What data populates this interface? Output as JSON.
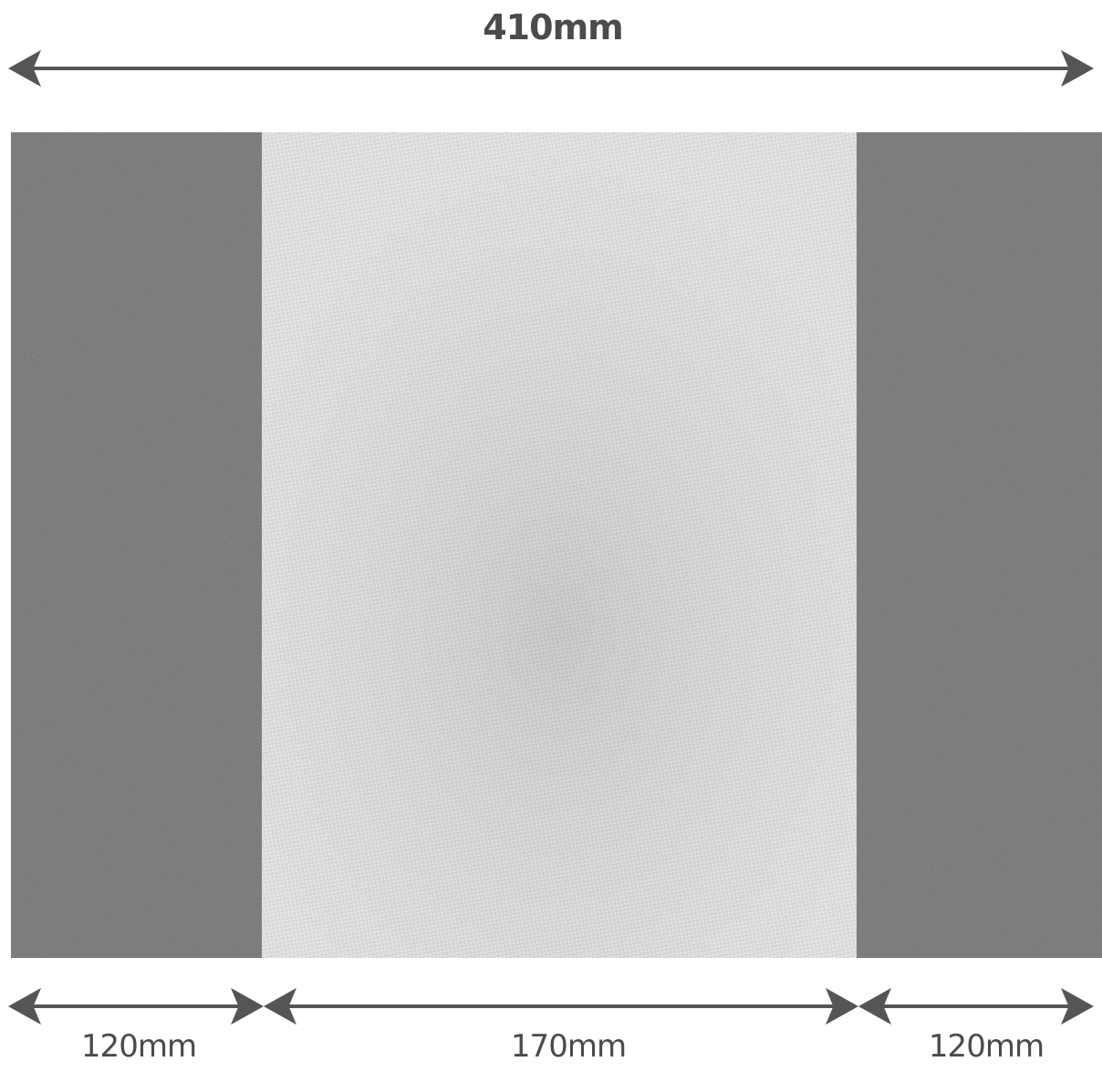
{
  "dimensions": {
    "total": "410mm",
    "left_panel": "120mm",
    "center_panel": "170mm",
    "right_panel": "120mm"
  },
  "colors": {
    "side_panel_fabric": "#6e6e6e",
    "center_panel_fabric": "#d6d6d6",
    "arrow": "#555555",
    "label_text": "#4b4b4b",
    "background": "#ffffff"
  }
}
